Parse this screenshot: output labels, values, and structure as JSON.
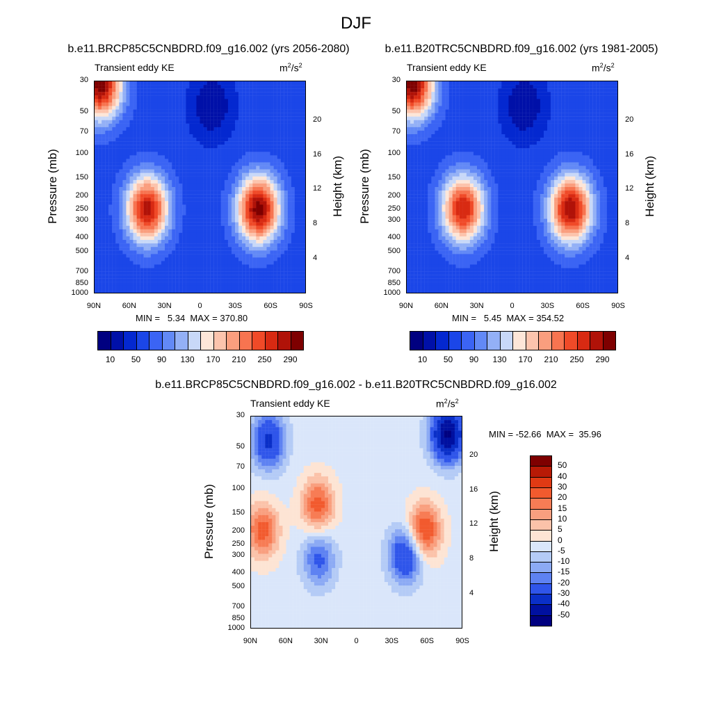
{
  "title": "DJF",
  "panels": [
    {
      "title": "b.e11.BRCP85C5CNBDRD.f09_g16.002 (yrs 2056-2080)",
      "variable": "Transient eddy KE",
      "units_base": "m",
      "units_sup1": "2",
      "units_mid": "/s",
      "units_sup2": "2",
      "ylabel_left": "Pressure (mb)",
      "ylabel_right": "Height (km)",
      "minmax": "MIN =   5.34  MAX = 370.80"
    },
    {
      "title": "b.e11.B20TRC5CNBDRD.f09_g16.002 (yrs 1981-2005)",
      "variable": "Transient eddy KE",
      "units_base": "m",
      "units_sup1": "2",
      "units_mid": "/s",
      "units_sup2": "2",
      "ylabel_left": "Pressure (mb)",
      "ylabel_right": "Height (km)",
      "minmax": "MIN =   5.45  MAX = 354.52"
    },
    {
      "title": "b.e11.BRCP85C5CNBDRD.f09_g16.002 - b.e11.B20TRC5CNBDRD.f09_g16.002",
      "variable": "Transient eddy KE",
      "units_base": "m",
      "units_sup1": "2",
      "units_mid": "/s",
      "units_sup2": "2",
      "ylabel_left": "Pressure (mb)",
      "ylabel_right": "Height (km)",
      "minmax": "MIN = -52.66  MAX =  35.96"
    }
  ],
  "axes": {
    "x_ticks": [
      "90N",
      "60N",
      "30N",
      "0",
      "30S",
      "60S",
      "90S"
    ],
    "pressure_ticks": [
      "30",
      "50",
      "70",
      "100",
      "150",
      "200",
      "250",
      "300",
      "400",
      "500",
      "700",
      "850",
      "1000"
    ],
    "height_ticks": [
      "20",
      "16",
      "12",
      "8",
      "4"
    ]
  },
  "colorbar_abs": {
    "labels": [
      "10",
      "50",
      "90",
      "130",
      "170",
      "210",
      "250",
      "290"
    ],
    "colors": [
      "#000080",
      "#0010a8",
      "#0428d0",
      "#1b46e8",
      "#3b64f4",
      "#6289f6",
      "#93b0f6",
      "#c8d8f8",
      "#fde6d8",
      "#fcc4ad",
      "#fa9e7e",
      "#f77450",
      "#f04a28",
      "#d82a12",
      "#b01208",
      "#7e0000"
    ]
  },
  "colorbar_diff": {
    "labels": [
      "50",
      "40",
      "30",
      "20",
      "15",
      "10",
      "5",
      "0",
      "-5",
      "-10",
      "-15",
      "-20",
      "-30",
      "-40",
      "-50"
    ],
    "colors": [
      "#7e0000",
      "#b81a06",
      "#e03a14",
      "#f25a2e",
      "#f77c55",
      "#f99f7f",
      "#fbc2a9",
      "#fde4d4",
      "#dae6fa",
      "#b4cbf6",
      "#8caaf4",
      "#5e82f2",
      "#2f55ea",
      "#0a2fc8",
      "#0010a0",
      "#000080"
    ]
  },
  "chart_data": [
    {
      "type": "heatmap",
      "title": "b.e11.BRCP85C5CNBDRD.f09_g16.002 (yrs 2056-2080)",
      "variable": "Transient eddy KE",
      "units": "m2/s2",
      "x_range": [
        "90N",
        "90S"
      ],
      "y_range_mb": [
        30,
        1000
      ],
      "y_scale": "log",
      "min": 5.34,
      "max": 370.8,
      "contour_levels": [
        10,
        30,
        50,
        70,
        90,
        110,
        130,
        150,
        170,
        190,
        210,
        230,
        250,
        270,
        290
      ],
      "features": [
        {
          "lat": 85,
          "p": 32,
          "value": 300
        },
        {
          "lat": 45,
          "p": 250,
          "value": 280
        },
        {
          "lat": -50,
          "p": 250,
          "value": 300
        },
        {
          "lat": -10,
          "p": 45,
          "value": 10
        }
      ]
    },
    {
      "type": "heatmap",
      "title": "b.e11.B20TRC5CNBDRD.f09_g16.002 (yrs 1981-2005)",
      "variable": "Transient eddy KE",
      "units": "m2/s2",
      "x_range": [
        "90N",
        "90S"
      ],
      "y_range_mb": [
        30,
        1000
      ],
      "y_scale": "log",
      "min": 5.45,
      "max": 354.52,
      "contour_levels": [
        10,
        30,
        50,
        70,
        90,
        110,
        130,
        150,
        170,
        190,
        210,
        230,
        250,
        270,
        290
      ],
      "features": [
        {
          "lat": 85,
          "p": 32,
          "value": 300
        },
        {
          "lat": 42,
          "p": 250,
          "value": 270
        },
        {
          "lat": -50,
          "p": 250,
          "value": 290
        },
        {
          "lat": -10,
          "p": 45,
          "value": 10
        }
      ]
    },
    {
      "type": "heatmap",
      "title": "b.e11.BRCP85C5CNBDRD.f09_g16.002 - b.e11.B20TRC5CNBDRD.f09_g16.002",
      "variable": "Transient eddy KE",
      "units": "m2/s2",
      "x_range": [
        "90N",
        "90S"
      ],
      "y_range_mb": [
        30,
        1000
      ],
      "y_scale": "log",
      "min": -52.66,
      "max": 35.96,
      "contour_levels": [
        -50,
        -40,
        -30,
        -20,
        -15,
        -10,
        -5,
        0,
        5,
        10,
        15,
        20,
        30,
        40,
        50
      ],
      "features": [
        {
          "lat": -78,
          "p": 40,
          "value": -50
        },
        {
          "lat": 75,
          "p": 45,
          "value": -30
        },
        {
          "lat": -58,
          "p": 200,
          "value": 30
        },
        {
          "lat": 80,
          "p": 200,
          "value": 25
        },
        {
          "lat": 33,
          "p": 130,
          "value": 25
        },
        {
          "lat": -42,
          "p": 300,
          "value": -30
        },
        {
          "lat": 32,
          "p": 320,
          "value": -20
        }
      ]
    }
  ]
}
